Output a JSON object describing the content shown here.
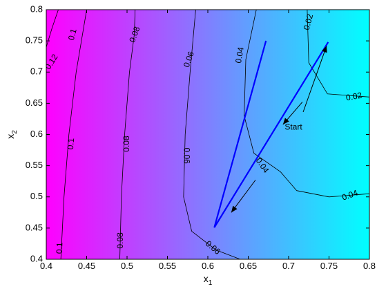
{
  "chart_data": {
    "type": "contour",
    "xlabel": "x",
    "xlabel_sub": "1",
    "ylabel": "x",
    "ylabel_sub": "2",
    "xlim": [
      0.4,
      0.8
    ],
    "ylim": [
      0.4,
      0.8
    ],
    "x_ticks": [
      "0.4",
      "0.45",
      "0.5",
      "0.55",
      "0.6",
      "0.65",
      "0.7",
      "0.75",
      "0.8"
    ],
    "y_ticks": [
      "0.4",
      "0.45",
      "0.5",
      "0.55",
      "0.6",
      "0.65",
      "0.7",
      "0.75",
      "0.8"
    ],
    "colormap": [
      "#ff00ff",
      "#00ffff"
    ],
    "contour_levels": [
      {
        "label": "0.12",
        "line": [
          [
            0.415,
            0.8
          ],
          [
            0.407,
            0.77
          ],
          [
            0.4,
            0.74
          ]
        ],
        "label_pos": [
          0.407,
          0.716
        ],
        "label_angle": -58
      },
      {
        "label": "0.1",
        "line": [
          [
            0.45,
            0.8
          ],
          [
            0.437,
            0.7
          ],
          [
            0.428,
            0.6
          ],
          [
            0.422,
            0.5
          ],
          [
            0.418,
            0.4
          ]
        ],
        "label_pos": [
          0.433,
          0.76
        ],
        "label_angle": -75,
        "extra_labels": [
          [
            0.431,
            0.585,
            -85
          ],
          [
            0.417,
            0.418,
            -88
          ]
        ]
      },
      {
        "label": "0.08",
        "line": [
          [
            0.51,
            0.8
          ],
          [
            0.509,
            0.76
          ],
          [
            0.503,
            0.7
          ],
          [
            0.497,
            0.6
          ],
          [
            0.493,
            0.5
          ],
          [
            0.491,
            0.4
          ]
        ],
        "label_pos": [
          0.51,
          0.76
        ],
        "label_angle": -70,
        "extra_labels": [
          [
            0.5,
            0.585,
            -90
          ],
          [
            0.492,
            0.43,
            -90
          ]
        ]
      },
      {
        "label": "0.06",
        "line": [
          [
            0.585,
            0.8
          ],
          [
            0.578,
            0.7
          ],
          [
            0.572,
            0.6
          ],
          [
            0.57,
            0.5
          ],
          [
            0.58,
            0.445
          ],
          [
            0.61,
            0.415
          ],
          [
            0.64,
            0.4
          ]
        ],
        "label_pos": [
          0.577,
          0.72
        ],
        "label_angle": -70,
        "extra_labels": [
          [
            0.573,
            0.566,
            90
          ],
          [
            0.606,
            0.418,
            40
          ]
        ]
      },
      {
        "label": "0.04",
        "line": [
          [
            0.66,
            0.8
          ],
          [
            0.647,
            0.72
          ],
          [
            0.645,
            0.63
          ],
          [
            0.657,
            0.57
          ],
          [
            0.69,
            0.54
          ],
          [
            0.71,
            0.51
          ],
          [
            0.75,
            0.5
          ],
          [
            0.8,
            0.505
          ]
        ],
        "label_pos": [
          0.64,
          0.727
        ],
        "label_angle": -80,
        "extra_labels": [
          [
            0.667,
            0.55,
            55
          ],
          [
            0.776,
            0.502,
            -20
          ]
        ]
      },
      {
        "label": "0.02",
        "line": [
          [
            0.723,
            0.8
          ],
          [
            0.725,
            0.715
          ],
          [
            0.748,
            0.665
          ],
          [
            0.8,
            0.66
          ]
        ],
        "label_pos": [
          0.725,
          0.78
        ],
        "label_angle": -75,
        "extra_labels": [
          [
            0.781,
            0.66,
            -10
          ]
        ]
      }
    ],
    "series": [
      {
        "color": "#0000ff",
        "points": [
          [
            0.749,
            0.748
          ],
          [
            0.608,
            0.451
          ],
          [
            0.672,
            0.75
          ]
        ]
      }
    ],
    "annotations": [
      {
        "text": "Start",
        "pos": [
          0.706,
          0.611
        ],
        "arrow_to": [
          0.747,
          0.742
        ]
      }
    ]
  },
  "direction_arrows": [
    {
      "from": [
        0.717,
        0.652
      ],
      "to": [
        0.693,
        0.616
      ]
    },
    {
      "from": [
        0.659,
        0.527
      ],
      "to": [
        0.629,
        0.475
      ]
    }
  ]
}
